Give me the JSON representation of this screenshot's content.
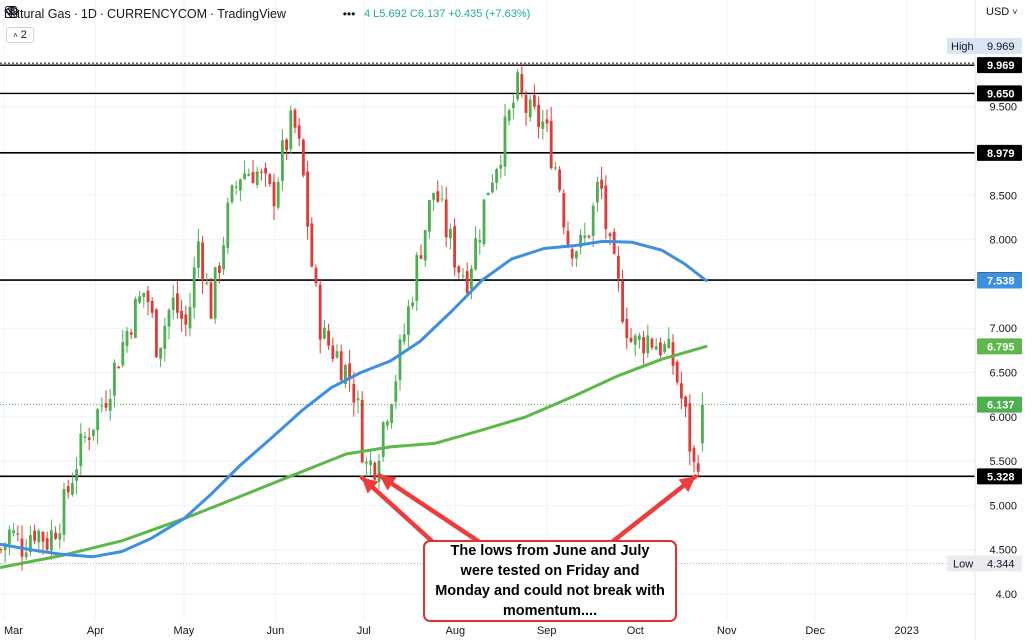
{
  "header": {
    "symbol": "Natural Gas",
    "interval": "1D",
    "exchange": "CURRENCYCOM",
    "source": "TradingView",
    "ohlc": "4 L5.692 C6.137 +0.435 (+7.63%)",
    "indicator_count": "2",
    "currency": "USD"
  },
  "chart_data": {
    "type": "candlestick",
    "x_labels": [
      "Mar",
      "Apr",
      "May",
      "Jun",
      "Jul",
      "Aug",
      "Sep",
      "Oct",
      "Nov",
      "Dec",
      "2023"
    ],
    "y_ticks": [
      "4.00",
      "4.500",
      "5.000",
      "5.500",
      "6.000",
      "6.500",
      "7.000",
      "7.500",
      "8.000",
      "8.500",
      "9.500"
    ],
    "ylim": [
      3.83,
      10.25
    ],
    "horizontal_levels": [
      9.969,
      9.65,
      8.979,
      7.543,
      5.328
    ],
    "price_labels": [
      {
        "text": "9.969",
        "value": 9.969,
        "kind": "level"
      },
      {
        "text": "9.650",
        "value": 9.65,
        "kind": "level"
      },
      {
        "text": "8.979",
        "value": 8.979,
        "kind": "level"
      },
      {
        "text": "7.543",
        "value": 7.543,
        "kind": "level"
      },
      {
        "text": "7.538",
        "value": 7.538,
        "kind": "ma100"
      },
      {
        "text": "6.795",
        "value": 6.795,
        "kind": "ma200"
      },
      {
        "text": "6.137",
        "value": 6.137,
        "kind": "last"
      },
      {
        "text": "5.328",
        "value": 5.328,
        "kind": "level"
      }
    ],
    "high": {
      "label": "High",
      "value": "9.969"
    },
    "low": {
      "label": "Low",
      "value": "4.344"
    },
    "last_price": 6.137,
    "colors": {
      "up": "#4caf50",
      "down": "#e53935",
      "ma100": "#3d8fe0",
      "ma200": "#5cb848",
      "arrows": "#ef3b3b"
    },
    "ohlc_path": [
      [
        "2022-02-28",
        4.5
      ],
      [
        "2022-03-03",
        4.7
      ],
      [
        "2022-03-07",
        4.55
      ],
      [
        "2022-03-11",
        4.75
      ],
      [
        "2022-03-16",
        4.6
      ],
      [
        "2022-03-21",
        4.95
      ],
      [
        "2022-03-25",
        5.45
      ],
      [
        "2022-03-29",
        5.8
      ],
      [
        "2022-04-04",
        6.2
      ],
      [
        "2022-04-08",
        6.6
      ],
      [
        "2022-04-13",
        7.1
      ],
      [
        "2022-04-18",
        7.45
      ],
      [
        "2022-04-22",
        6.8
      ],
      [
        "2022-04-27",
        7.3
      ],
      [
        "2022-05-02",
        7.0
      ],
      [
        "2022-05-06",
        8.0
      ],
      [
        "2022-05-10",
        7.2
      ],
      [
        "2022-05-16",
        8.3
      ],
      [
        "2022-05-20",
        8.75
      ],
      [
        "2022-05-25",
        8.8
      ],
      [
        "2022-05-31",
        8.45
      ],
      [
        "2022-06-03",
        8.9
      ],
      [
        "2022-06-07",
        9.35
      ],
      [
        "2022-06-10",
        8.85
      ],
      [
        "2022-06-14",
        7.5
      ],
      [
        "2022-06-17",
        6.9
      ],
      [
        "2022-06-22",
        6.7
      ],
      [
        "2022-06-27",
        6.4
      ],
      [
        "2022-06-30",
        5.9
      ],
      [
        "2022-07-01",
        5.42
      ],
      [
        "2022-07-05",
        5.5
      ],
      [
        "2022-07-08",
        6.0
      ],
      [
        "2022-07-12",
        6.5
      ],
      [
        "2022-07-15",
        7.0
      ],
      [
        "2022-07-20",
        7.9
      ],
      [
        "2022-07-25",
        8.6
      ],
      [
        "2022-07-28",
        8.2
      ],
      [
        "2022-08-02",
        7.7
      ],
      [
        "2022-08-05",
        7.6
      ],
      [
        "2022-08-09",
        8.1
      ],
      [
        "2022-08-12",
        8.6
      ],
      [
        "2022-08-17",
        9.1
      ],
      [
        "2022-08-22",
        9.7
      ],
      [
        "2022-08-26",
        9.4
      ],
      [
        "2022-08-31",
        9.3
      ],
      [
        "2022-09-05",
        8.7
      ],
      [
        "2022-09-08",
        8.0
      ],
      [
        "2022-09-13",
        7.9
      ],
      [
        "2022-09-16",
        8.2
      ],
      [
        "2022-09-19",
        8.7
      ],
      [
        "2022-09-22",
        7.9
      ],
      [
        "2022-09-27",
        7.2
      ],
      [
        "2022-09-30",
        6.8
      ],
      [
        "2022-10-05",
        6.9
      ],
      [
        "2022-10-10",
        6.8
      ],
      [
        "2022-10-14",
        6.6
      ],
      [
        "2022-10-18",
        6.0
      ],
      [
        "2022-10-21",
        5.4
      ],
      [
        "2022-10-24",
        5.8
      ],
      [
        "2022-10-25",
        6.137
      ]
    ],
    "ma100_path": [
      [
        "2022-02-28",
        4.56
      ],
      [
        "2022-03-10",
        4.5
      ],
      [
        "2022-03-20",
        4.45
      ],
      [
        "2022-03-31",
        4.42
      ],
      [
        "2022-04-10",
        4.48
      ],
      [
        "2022-04-20",
        4.63
      ],
      [
        "2022-05-01",
        4.85
      ],
      [
        "2022-05-10",
        5.12
      ],
      [
        "2022-05-20",
        5.45
      ],
      [
        "2022-06-01",
        5.8
      ],
      [
        "2022-06-10",
        6.07
      ],
      [
        "2022-06-20",
        6.33
      ],
      [
        "2022-06-30",
        6.5
      ],
      [
        "2022-07-10",
        6.63
      ],
      [
        "2022-07-20",
        6.85
      ],
      [
        "2022-07-31",
        7.2
      ],
      [
        "2022-08-10",
        7.54
      ],
      [
        "2022-08-20",
        7.78
      ],
      [
        "2022-08-31",
        7.9
      ],
      [
        "2022-09-10",
        7.93
      ],
      [
        "2022-09-20",
        7.98
      ],
      [
        "2022-09-30",
        7.97
      ],
      [
        "2022-10-10",
        7.88
      ],
      [
        "2022-10-18",
        7.72
      ],
      [
        "2022-10-25",
        7.538
      ]
    ],
    "ma200_path": [
      [
        "2022-02-28",
        4.3
      ],
      [
        "2022-03-20",
        4.43
      ],
      [
        "2022-04-10",
        4.6
      ],
      [
        "2022-05-01",
        4.85
      ],
      [
        "2022-05-20",
        5.1
      ],
      [
        "2022-06-10",
        5.38
      ],
      [
        "2022-06-25",
        5.58
      ],
      [
        "2022-07-10",
        5.66
      ],
      [
        "2022-07-25",
        5.7
      ],
      [
        "2022-08-10",
        5.85
      ],
      [
        "2022-08-25",
        6.0
      ],
      [
        "2022-09-10",
        6.23
      ],
      [
        "2022-09-25",
        6.46
      ],
      [
        "2022-10-10",
        6.65
      ],
      [
        "2022-10-25",
        6.795
      ]
    ]
  },
  "annotation": {
    "text": "The lows from June and July were tested on Friday and Monday and could not break with momentum...."
  }
}
